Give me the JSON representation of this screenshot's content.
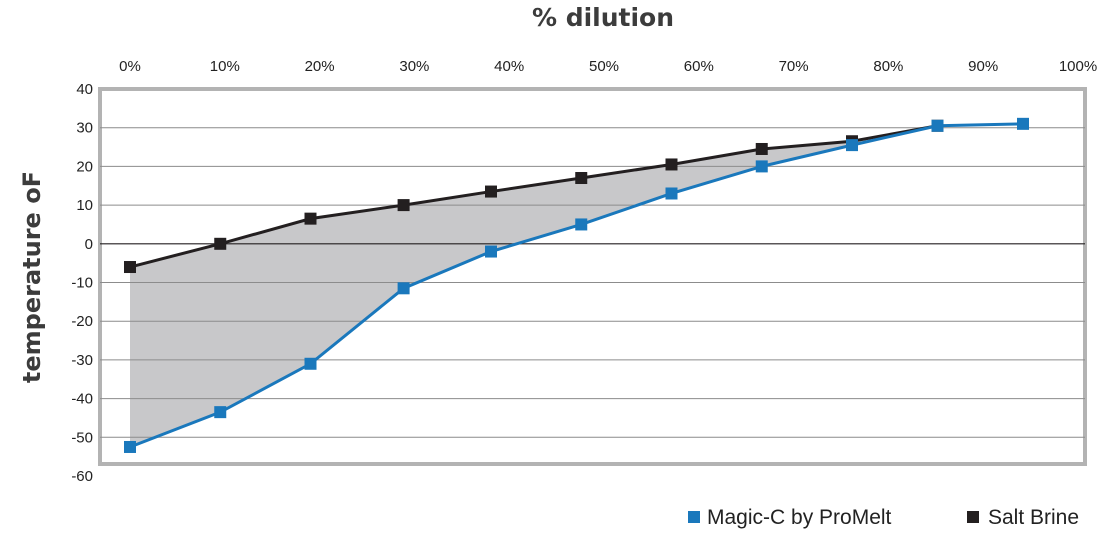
{
  "chart_data": {
    "type": "line",
    "title": "% dilution",
    "xlabel": "% dilution",
    "ylabel": "temperature  oF",
    "x_tick_labels": [
      "0%",
      "10%",
      "20%",
      "30%",
      "40%",
      "50%",
      "60%",
      "70%",
      "80%",
      "90%",
      "100%"
    ],
    "y_tick_labels": [
      "40",
      "30",
      "20",
      "10",
      "0",
      "-10",
      "-20",
      "-30",
      "-40",
      "-50",
      "-60"
    ],
    "ylim": [
      -60,
      40
    ],
    "xlim": [
      0,
      100
    ],
    "x_axis_position": "top",
    "grid": true,
    "shaded_region_between_series": true,
    "legend_position": "bottom-right",
    "series": [
      {
        "name": "Magic-C by ProMelt",
        "color": "#1a78bc",
        "x": [
          0,
          9.5,
          19,
          28.8,
          38,
          47.5,
          57,
          66.5,
          76,
          85,
          94
        ],
        "y": [
          -52.5,
          -43.5,
          -31,
          -11.5,
          -2,
          5,
          13,
          20,
          25.5,
          30.5,
          31
        ]
      },
      {
        "name": "Salt Brine",
        "color": "#231f20",
        "x": [
          0,
          9.5,
          19,
          28.8,
          38,
          47.5,
          57,
          66.5,
          76,
          85
        ],
        "y": [
          -6,
          0,
          6.5,
          10,
          13.5,
          17,
          20.5,
          24.5,
          26.5,
          30.5
        ]
      }
    ]
  }
}
